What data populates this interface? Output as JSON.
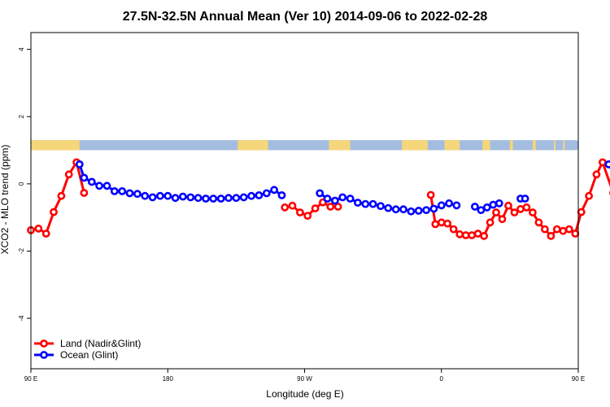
{
  "chart_data": {
    "type": "line",
    "title": "27.5N-32.5N Annual Mean (Ver 10)   2014-09-06 to 2022-02-28",
    "xlabel": "Longitude (deg E)",
    "ylabel": "XCO2 - MLO trend (ppm)",
    "xlim": [
      90,
      450
    ],
    "ylim": [
      -5.5,
      4.5
    ],
    "x_ticks": [
      {
        "value": 90,
        "label": "90 E"
      },
      {
        "value": 180,
        "label": "180"
      },
      {
        "value": 270,
        "label": "90 W"
      },
      {
        "value": 360,
        "label": "0"
      },
      {
        "value": 450,
        "label": "90 E"
      },
      {
        "value": 540,
        "label": "180"
      }
    ],
    "y_ticks": [
      {
        "value": 4,
        "label": "4"
      },
      {
        "value": 2,
        "label": "2"
      },
      {
        "value": 0,
        "label": "0"
      },
      {
        "value": -2,
        "label": "-2"
      },
      {
        "value": -4,
        "label": "-4"
      }
    ],
    "landmask_band": {
      "y_range": [
        1.0,
        1.3
      ],
      "land_color": "#f5d67a",
      "ocean_color": "#a3bde0",
      "land_segments": [
        [
          90,
          122
        ],
        [
          226,
          246
        ],
        [
          286,
          300
        ],
        [
          334,
          351
        ],
        [
          362,
          372
        ],
        [
          387,
          392
        ],
        [
          405,
          407
        ],
        [
          420,
          422
        ],
        [
          434,
          435
        ],
        [
          440,
          441
        ]
      ]
    },
    "legend": {
      "position": "bottom-left"
    },
    "series": [
      {
        "name": "Land (Nadir&Glint)",
        "color": "#ff0000",
        "points": [
          [
            90,
            -1.38
          ],
          [
            95,
            -1.33
          ],
          [
            100,
            -1.48
          ],
          [
            105,
            -0.84
          ],
          [
            110,
            -0.36
          ],
          [
            115,
            0.28
          ],
          [
            120,
            0.64
          ],
          [
            125,
            -0.27
          ],
          null,
          [
            257,
            -0.7
          ],
          [
            262,
            -0.65
          ],
          [
            267,
            -0.85
          ],
          [
            272,
            -0.95
          ],
          [
            277,
            -0.73
          ],
          [
            282,
            -0.55
          ],
          [
            287,
            -0.68
          ],
          [
            292,
            -0.68
          ],
          null,
          [
            353,
            -0.33
          ],
          [
            356,
            -1.2
          ],
          [
            360,
            -1.15
          ],
          [
            364,
            -1.18
          ],
          [
            368,
            -1.35
          ],
          [
            372,
            -1.5
          ],
          [
            376,
            -1.53
          ],
          [
            380,
            -1.53
          ],
          [
            384,
            -1.48
          ],
          [
            388,
            -1.55
          ],
          [
            392,
            -1.15
          ],
          [
            396,
            -0.85
          ],
          [
            400,
            -1.05
          ],
          [
            404,
            -0.65
          ],
          [
            408,
            -0.85
          ],
          [
            412,
            -0.75
          ],
          [
            416,
            -0.7
          ],
          [
            420,
            -0.85
          ],
          [
            424,
            -1.15
          ],
          [
            428,
            -1.35
          ],
          [
            432,
            -1.55
          ],
          [
            436,
            -1.35
          ],
          [
            440,
            -1.4
          ],
          [
            444,
            -1.35
          ],
          [
            448,
            -1.48
          ],
          [
            452,
            -0.84
          ],
          [
            457,
            -0.36
          ],
          [
            462,
            0.28
          ],
          [
            466,
            0.64
          ],
          [
            473,
            -0.27
          ]
        ]
      },
      {
        "name": "Ocean (Glint)",
        "color": "#0000ff",
        "points": [
          [
            122,
            0.58
          ],
          [
            125,
            0.18
          ],
          [
            130,
            0.06
          ],
          [
            135,
            -0.06
          ],
          [
            140,
            -0.06
          ],
          [
            145,
            -0.22
          ],
          [
            150,
            -0.22
          ],
          [
            155,
            -0.28
          ],
          [
            160,
            -0.3
          ],
          [
            165,
            -0.36
          ],
          [
            170,
            -0.4
          ],
          [
            175,
            -0.36
          ],
          [
            180,
            -0.36
          ],
          [
            185,
            -0.42
          ],
          [
            190,
            -0.38
          ],
          [
            195,
            -0.4
          ],
          [
            200,
            -0.42
          ],
          [
            205,
            -0.44
          ],
          [
            210,
            -0.44
          ],
          [
            215,
            -0.44
          ],
          [
            220,
            -0.42
          ],
          [
            225,
            -0.42
          ],
          [
            230,
            -0.4
          ],
          [
            235,
            -0.36
          ],
          [
            240,
            -0.34
          ],
          [
            245,
            -0.28
          ],
          [
            250,
            -0.18
          ],
          [
            255,
            -0.34
          ],
          null,
          [
            280,
            -0.28
          ],
          [
            285,
            -0.44
          ],
          [
            290,
            -0.5
          ],
          [
            295,
            -0.4
          ],
          [
            300,
            -0.44
          ],
          [
            305,
            -0.56
          ],
          [
            310,
            -0.6
          ],
          [
            315,
            -0.6
          ],
          [
            320,
            -0.66
          ],
          [
            325,
            -0.72
          ],
          [
            330,
            -0.76
          ],
          [
            335,
            -0.76
          ],
          [
            340,
            -0.82
          ],
          [
            345,
            -0.8
          ],
          [
            350,
            -0.78
          ],
          [
            355,
            -0.74
          ],
          [
            360,
            -0.64
          ],
          [
            365,
            -0.58
          ],
          [
            370,
            -0.64
          ],
          null,
          [
            382,
            -0.68
          ],
          [
            386,
            -0.78
          ],
          [
            390,
            -0.7
          ],
          [
            394,
            -0.62
          ],
          [
            398,
            -0.58
          ],
          null,
          [
            412,
            -0.44
          ],
          [
            415,
            -0.44
          ],
          null,
          [
            470,
            0.58
          ],
          [
            475,
            0.18
          ],
          [
            480,
            0.06
          ],
          [
            485,
            -0.06
          ],
          [
            490,
            -0.06
          ],
          [
            495,
            -0.22
          ],
          [
            500,
            -0.22
          ],
          [
            505,
            -0.28
          ],
          [
            510,
            -0.3
          ],
          [
            515,
            -0.36
          ],
          [
            520,
            -0.4
          ],
          [
            525,
            -0.36
          ]
        ]
      }
    ]
  }
}
